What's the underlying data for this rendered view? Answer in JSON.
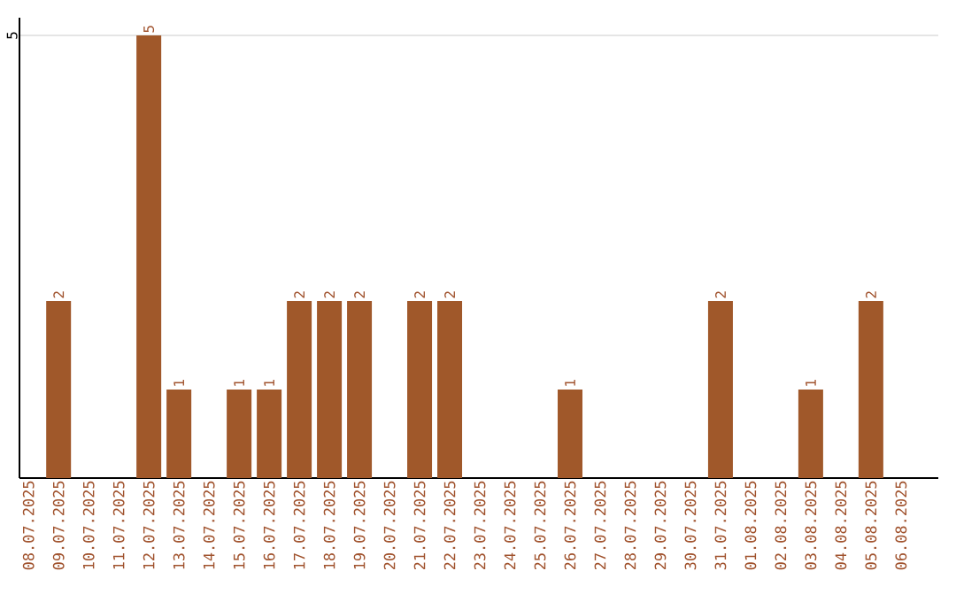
{
  "chart_data": {
    "type": "bar",
    "categories": [
      "08.07.2025",
      "09.07.2025",
      "10.07.2025",
      "11.07.2025",
      "12.07.2025",
      "13.07.2025",
      "14.07.2025",
      "15.07.2025",
      "16.07.2025",
      "17.07.2025",
      "18.07.2025",
      "19.07.2025",
      "20.07.2025",
      "21.07.2025",
      "22.07.2025",
      "23.07.2025",
      "24.07.2025",
      "25.07.2025",
      "26.07.2025",
      "27.07.2025",
      "28.07.2025",
      "29.07.2025",
      "30.07.2025",
      "31.07.2025",
      "01.08.2025",
      "02.08.2025",
      "03.08.2025",
      "04.08.2025",
      "05.08.2025",
      "06.08.2025"
    ],
    "values": [
      0,
      2,
      0,
      0,
      5,
      1,
      0,
      1,
      1,
      2,
      2,
      2,
      0,
      2,
      2,
      0,
      0,
      0,
      1,
      0,
      0,
      0,
      0,
      2,
      0,
      0,
      1,
      0,
      2,
      0
    ],
    "value_labels": [
      null,
      "2",
      null,
      null,
      "5",
      "1",
      null,
      "1",
      "1",
      "2",
      "2",
      "2",
      null,
      "2",
      "2",
      null,
      null,
      null,
      "1",
      null,
      null,
      null,
      null,
      "2",
      null,
      null,
      "1",
      null,
      "2",
      null
    ],
    "color": "#a0582a",
    "ylim": [
      0,
      5.2
    ],
    "yticks": [
      5
    ],
    "grid": "y"
  }
}
